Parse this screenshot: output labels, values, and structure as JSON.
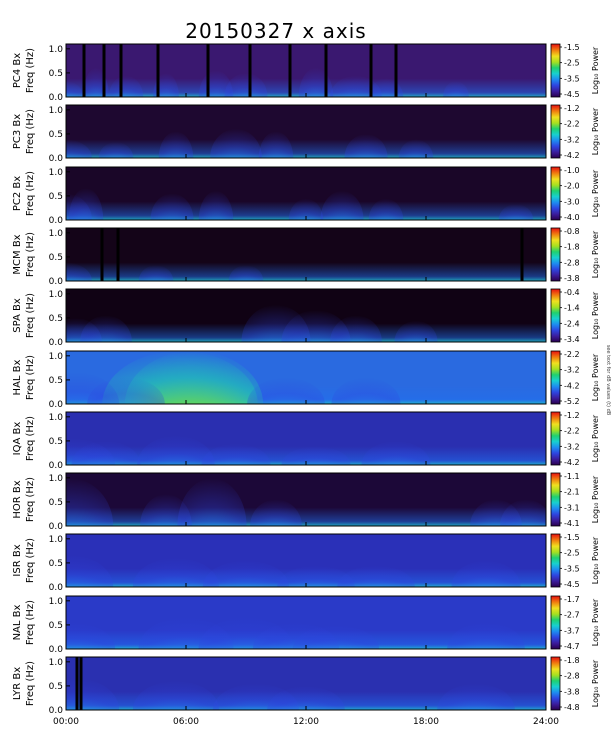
{
  "chart_data": {
    "type": "heatmap",
    "title": "20150327 x axis",
    "xlabel": "",
    "x_ticks": [
      "00:00",
      "06:00",
      "12:00",
      "18:00",
      "24:00"
    ],
    "x_range_hours": [
      0,
      24
    ],
    "y_ticks": [
      "0.0",
      "0.5",
      "1.0"
    ],
    "y_range_hz": [
      0,
      1.1
    ],
    "colorbar_label": "Log₁₀ Power",
    "colormap": [
      "#2a0050",
      "#3b1c9c",
      "#2e45e0",
      "#1e8cf0",
      "#18d0d0",
      "#20d070",
      "#a8e020",
      "#f0e020",
      "#f08010",
      "#e81010"
    ],
    "side_note": "see text for dB values (t) dB",
    "panels": [
      {
        "station": "PC4 Bx",
        "ylabel": "Freq (Hz)",
        "cb_ticks": [
          "-1.5",
          "-2.5",
          "-3.5",
          "-4.5"
        ],
        "background": "#3a1870",
        "bursts": [
          [
            0.0,
            0.3,
            0.2
          ],
          [
            1.5,
            0.55,
            0.15
          ],
          [
            3.0,
            0.4,
            0.2
          ],
          [
            5.0,
            0.45,
            0.15
          ],
          [
            7.5,
            0.5,
            0.2
          ],
          [
            9.0,
            0.45,
            0.25
          ],
          [
            12.5,
            0.55,
            0.2
          ],
          [
            14.5,
            0.4,
            0.3
          ],
          [
            16.0,
            0.35,
            0.2
          ],
          [
            19.5,
            0.3,
            0.15
          ]
        ],
        "gaps_hours": [
          0.9,
          1.9,
          2.75,
          4.6,
          7.1,
          9.2,
          11.2,
          13.0,
          15.25,
          16.5
        ]
      },
      {
        "station": "PC3 Bx",
        "ylabel": "Freq (Hz)",
        "cb_ticks": [
          "-1.2",
          "-2.2",
          "-3.2",
          "-4.2"
        ],
        "background": "#1e0830",
        "bursts": [
          [
            0.0,
            0.35,
            0.3
          ],
          [
            2.5,
            0.3,
            0.2
          ],
          [
            5.5,
            0.5,
            0.2
          ],
          [
            8.5,
            0.55,
            0.3
          ],
          [
            10.5,
            0.5,
            0.2
          ],
          [
            15.0,
            0.45,
            0.25
          ],
          [
            17.5,
            0.35,
            0.2
          ]
        ],
        "gaps_hours": []
      },
      {
        "station": "PC2 Bx",
        "ylabel": "Freq (Hz)",
        "cb_ticks": [
          "-1.0",
          "-2.0",
          "-3.0",
          "-4.0"
        ],
        "background": "#1a0628",
        "bursts": [
          [
            0.0,
            0.5,
            0.3
          ],
          [
            1.0,
            0.6,
            0.2
          ],
          [
            5.3,
            0.5,
            0.25
          ],
          [
            7.5,
            0.55,
            0.2
          ],
          [
            12.0,
            0.4,
            0.2
          ],
          [
            13.8,
            0.55,
            0.25
          ],
          [
            16.0,
            0.4,
            0.2
          ],
          [
            22.5,
            0.3,
            0.2
          ]
        ],
        "gaps_hours": []
      },
      {
        "station": "MCM Bx",
        "ylabel": "Freq (Hz)",
        "cb_ticks": [
          "-0.8",
          "-1.8",
          "-2.8",
          "-3.8"
        ],
        "background": "#140418",
        "bursts": [
          [
            0.0,
            0.35,
            0.3
          ],
          [
            4.5,
            0.3,
            0.2
          ],
          [
            9.0,
            0.3,
            0.2
          ]
        ],
        "gaps_hours": [
          1.8,
          2.6,
          22.8
        ]
      },
      {
        "station": "SPA Bx",
        "ylabel": "Freq (Hz)",
        "cb_ticks": [
          "-0.4",
          "-1.4",
          "-2.4",
          "-3.4"
        ],
        "background": "#100214",
        "bursts": [
          [
            0.5,
            0.45,
            0.3
          ],
          [
            2.0,
            0.5,
            0.3
          ],
          [
            10.5,
            0.7,
            0.4
          ],
          [
            12.5,
            0.6,
            0.4
          ],
          [
            14.5,
            0.5,
            0.3
          ],
          [
            17.5,
            0.4,
            0.25
          ]
        ],
        "gaps_hours": []
      },
      {
        "station": "HAL Bx",
        "ylabel": "Freq (Hz)",
        "cb_ticks": [
          "-2.2",
          "-3.2",
          "-4.2",
          "-5.2"
        ],
        "background": "#2a6ae0",
        "bursts": [
          [
            5.7,
            1.0,
            0.9
          ],
          [
            6.4,
            1.0,
            0.8
          ],
          [
            0.5,
            0.6,
            0.5
          ],
          [
            3.0,
            0.5,
            0.45
          ],
          [
            11.0,
            0.5,
            0.45
          ],
          [
            15.0,
            0.5,
            0.4
          ]
        ],
        "gaps_hours": []
      },
      {
        "station": "IQA Bx",
        "ylabel": "Freq (Hz)",
        "cb_ticks": [
          "-1.2",
          "-2.2",
          "-3.2",
          "-4.2"
        ],
        "background": "#2a2fb0",
        "bursts": [
          [
            0.3,
            0.5,
            0.5
          ],
          [
            2.0,
            0.45,
            0.4
          ],
          [
            5.5,
            0.55,
            0.45
          ],
          [
            8.5,
            0.4,
            0.4
          ],
          [
            12.5,
            0.35,
            0.4
          ],
          [
            16.5,
            0.45,
            0.4
          ]
        ],
        "gaps_hours": []
      },
      {
        "station": "HOR Bx",
        "ylabel": "Freq (Hz)",
        "cb_ticks": [
          "-1.1",
          "-2.1",
          "-3.1",
          "-4.1"
        ],
        "background": "#1c0838",
        "bursts": [
          [
            0.2,
            0.9,
            0.5
          ],
          [
            5.0,
            0.6,
            0.3
          ],
          [
            7.3,
            0.9,
            0.4
          ],
          [
            10.5,
            0.5,
            0.3
          ],
          [
            21.5,
            0.5,
            0.3
          ],
          [
            23.0,
            0.5,
            0.3
          ]
        ],
        "gaps_hours": []
      },
      {
        "station": "ISR Bx",
        "ylabel": "Freq (Hz)",
        "cb_ticks": [
          "-1.5",
          "-2.5",
          "-3.5",
          "-4.5"
        ],
        "background": "#2a30b8",
        "bursts": [
          [
            0.2,
            0.6,
            0.5
          ],
          [
            5.5,
            0.55,
            0.5
          ],
          [
            9.0,
            0.5,
            0.5
          ],
          [
            12.5,
            0.4,
            0.45
          ],
          [
            15.5,
            0.4,
            0.45
          ],
          [
            21.0,
            0.5,
            0.4
          ]
        ],
        "gaps_hours": []
      },
      {
        "station": "NAL Bx",
        "ylabel": "Freq (Hz)",
        "cb_ticks": [
          "-1.7",
          "-2.7",
          "-3.7",
          "-4.7"
        ],
        "background": "#2a3ac8",
        "bursts": [
          [
            0.3,
            0.5,
            0.5
          ],
          [
            6.0,
            0.6,
            0.55
          ],
          [
            9.0,
            0.6,
            0.55
          ],
          [
            11.5,
            0.5,
            0.5
          ],
          [
            13.5,
            0.45,
            0.5
          ],
          [
            21.0,
            0.5,
            0.45
          ]
        ],
        "gaps_hours": []
      },
      {
        "station": "LYR Bx",
        "ylabel": "Freq (Hz)",
        "cb_ticks": [
          "-1.8",
          "-2.8",
          "-3.8",
          "-4.8"
        ],
        "background": "#2a30b0",
        "bursts": [
          [
            0.5,
            0.6,
            0.5
          ],
          [
            5.5,
            0.55,
            0.5
          ],
          [
            9.5,
            0.5,
            0.5
          ],
          [
            12.0,
            0.45,
            0.45
          ],
          [
            20.5,
            0.5,
            0.45
          ]
        ],
        "gaps_hours": [
          0.55,
          0.75
        ]
      }
    ]
  }
}
